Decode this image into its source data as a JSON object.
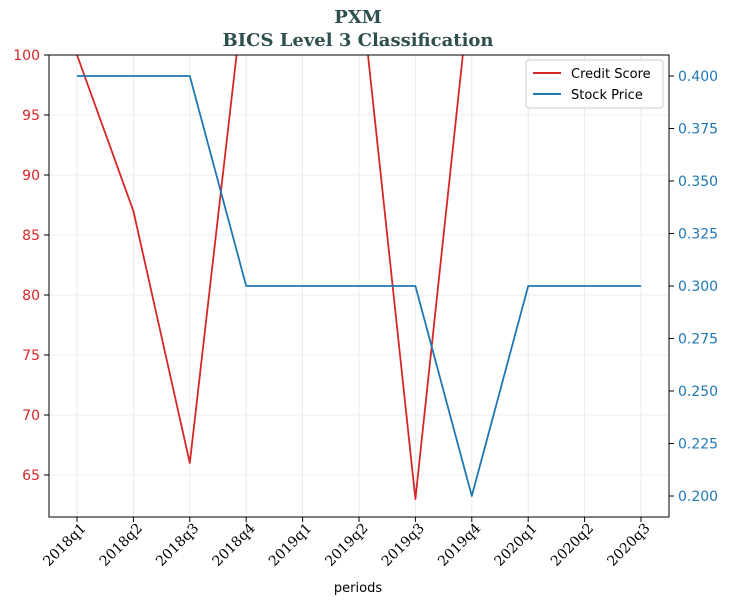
{
  "chart_data": {
    "type": "line",
    "title": "PXM",
    "subtitle": "BICS Level 3 Classification",
    "xlabel": "periods",
    "categories": [
      "2018q1",
      "2018q2",
      "2018q3",
      "2018q4",
      "2019q1",
      "2019q2",
      "2019q3",
      "2019q4",
      "2020q1",
      "2020q2",
      "2020q3"
    ],
    "left_axis": {
      "ylim": [
        61.5,
        100
      ],
      "ticks": [
        "65",
        "70",
        "75",
        "80",
        "85",
        "90",
        "95",
        "100"
      ],
      "color": "#d62728"
    },
    "right_axis": {
      "ylim": [
        0.19,
        0.41
      ],
      "ticks": [
        "0.200",
        "0.225",
        "0.250",
        "0.275",
        "0.300",
        "0.325",
        "0.350",
        "0.375",
        "0.400"
      ],
      "color": "#1f77b4"
    },
    "series": [
      {
        "name": "Credit Score",
        "axis": "left",
        "color": "#d62728",
        "values": [
          100,
          87,
          66,
          107,
          null,
          107,
          63,
          107,
          null,
          null,
          null
        ]
      },
      {
        "name": "Stock Price",
        "axis": "right",
        "color": "#1f77b4",
        "values": [
          0.4,
          0.4,
          0.4,
          0.3,
          0.3,
          0.3,
          0.3,
          0.2,
          0.3,
          0.3,
          0.3
        ]
      }
    ],
    "grid": true,
    "legend": "top-right"
  }
}
